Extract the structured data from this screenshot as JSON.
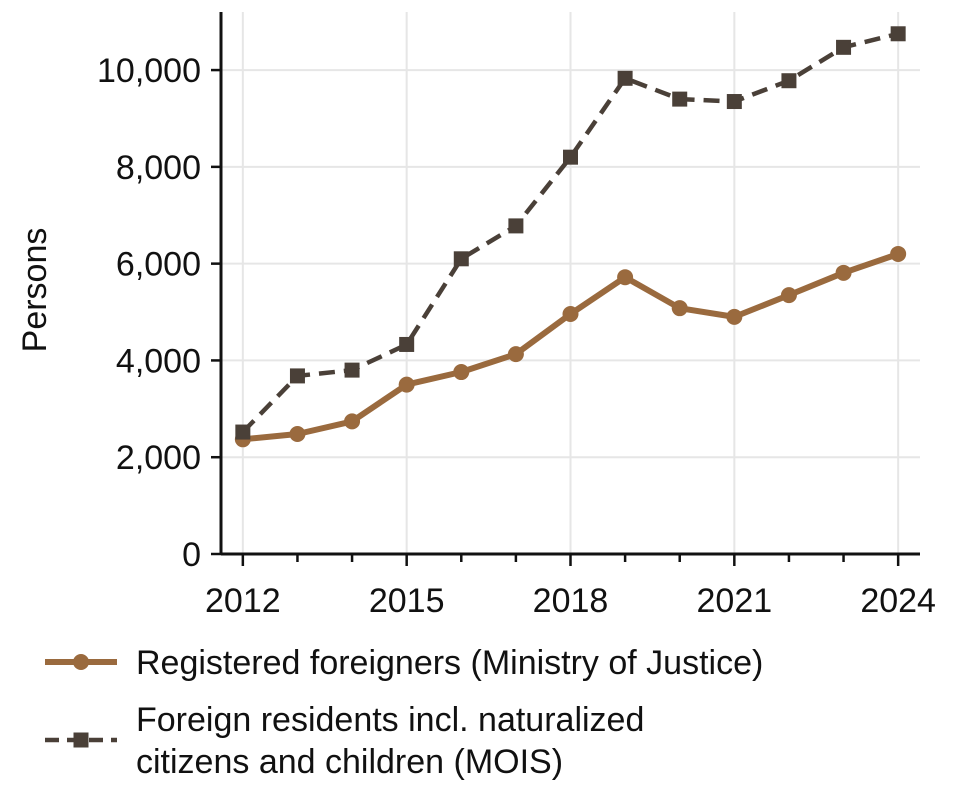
{
  "chart_data": {
    "type": "line",
    "title": "",
    "xlabel": "",
    "ylabel": "Persons",
    "x": [
      2012,
      2013,
      2014,
      2015,
      2016,
      2017,
      2018,
      2019,
      2020,
      2021,
      2022,
      2023,
      2024
    ],
    "x_ticks": [
      "2012",
      "2015",
      "2018",
      "2021",
      "2024"
    ],
    "x_tick_values": [
      2012,
      2015,
      2018,
      2021,
      2024
    ],
    "y_ticks": [
      "0",
      "2,000",
      "4,000",
      "6,000",
      "8,000",
      "10,000"
    ],
    "y_tick_values": [
      0,
      2000,
      4000,
      6000,
      8000,
      10000
    ],
    "xlim": [
      2011.6,
      2024.4
    ],
    "ylim": [
      0,
      11200
    ],
    "grid": true,
    "legend_position": "bottom",
    "series": [
      {
        "name": "Registered foreigners (Ministry of Justice)",
        "values": [
          2370,
          2480,
          2740,
          3500,
          3760,
          4130,
          4960,
          5720,
          5080,
          4900,
          5350,
          5810,
          6200
        ],
        "color": "#9a6a3e",
        "marker": "circle",
        "line_style": "solid"
      },
      {
        "name": "Foreign residents incl. naturalized citizens and children (MOIS)",
        "name_lines": [
          "Foreign residents incl. naturalized",
          "citizens and children (MOIS)"
        ],
        "values": [
          2520,
          3680,
          3800,
          4330,
          6100,
          6780,
          8200,
          9830,
          9400,
          9350,
          9780,
          10470,
          10750
        ],
        "color": "#4a4038",
        "marker": "square",
        "line_style": "dashed"
      }
    ]
  }
}
